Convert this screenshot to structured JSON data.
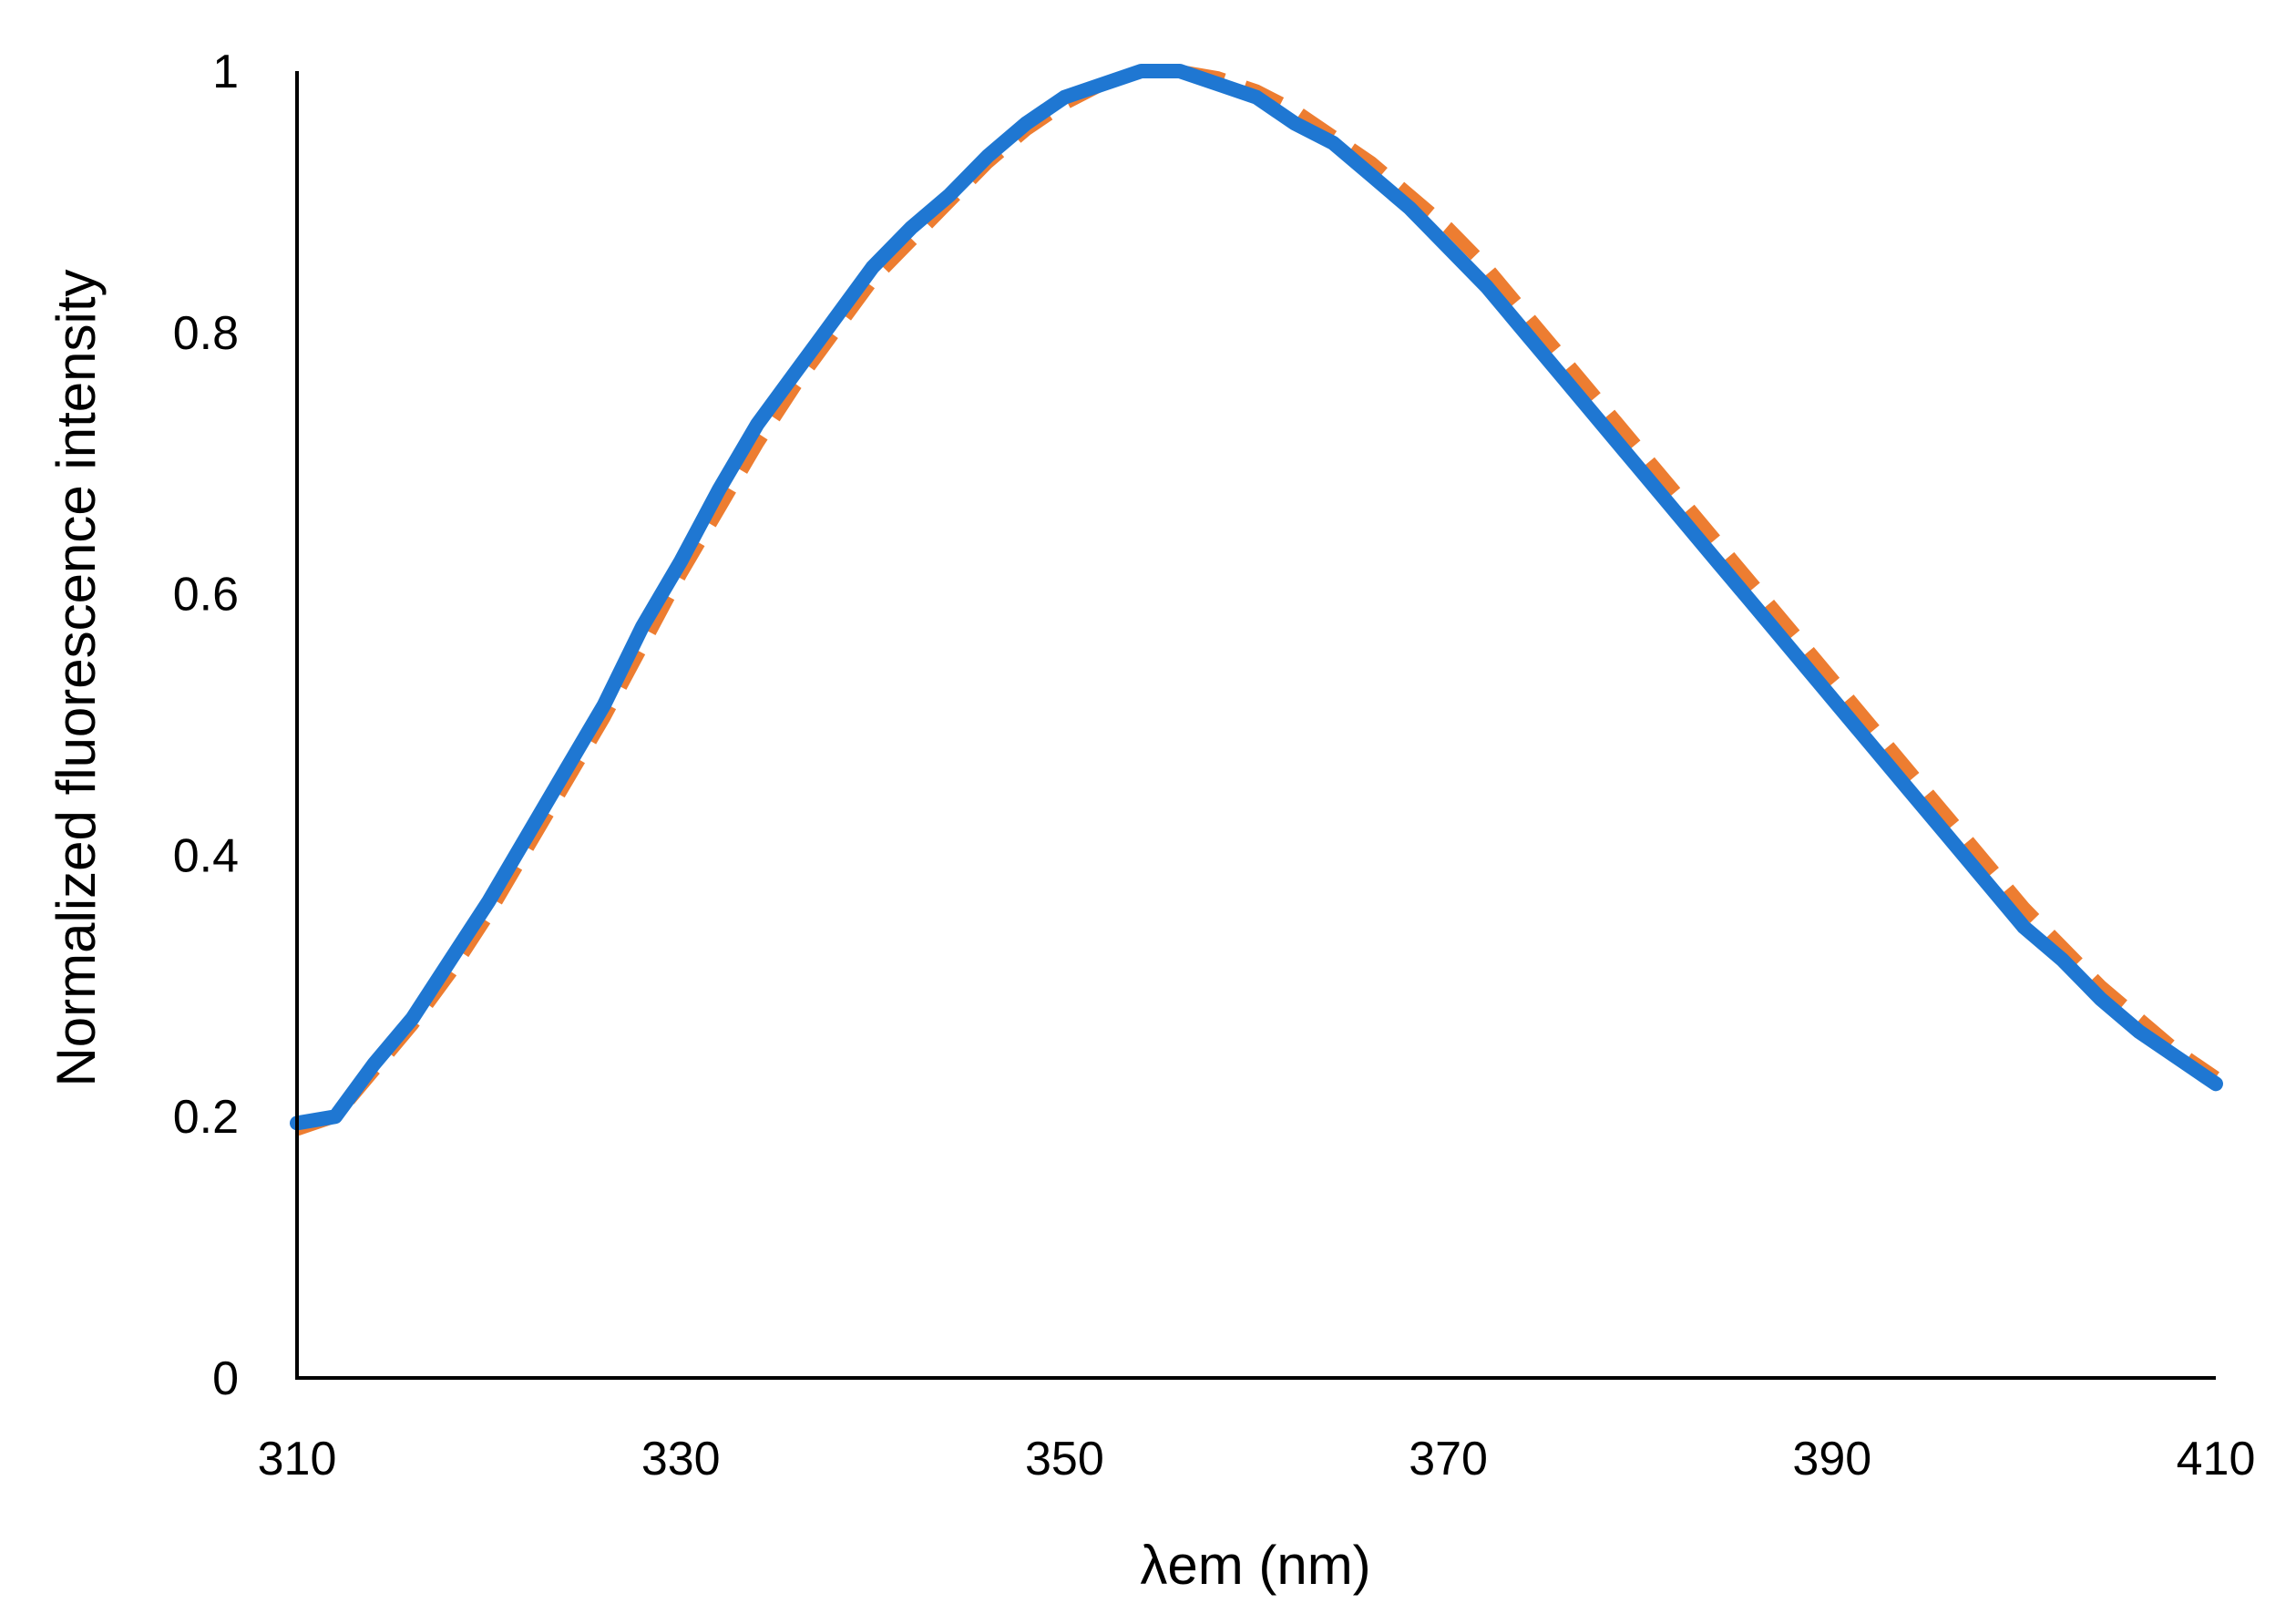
{
  "chart_data": {
    "type": "line",
    "xlabel": "λem (nm)",
    "ylabel": "Normalized fluorescence intensity",
    "xlim": [
      310,
      410
    ],
    "ylim": [
      0,
      1
    ],
    "x_ticks": [
      "310",
      "330",
      "350",
      "370",
      "390",
      "410"
    ],
    "y_ticks": [
      "0",
      "0.2",
      "0.4",
      "0.6",
      "0.8",
      "1"
    ],
    "grid": false,
    "legend": "none",
    "series": [
      {
        "color": "#ED7D31",
        "style": "dashed",
        "x": [
          310,
          312,
          314,
          316,
          318,
          320,
          322,
          324,
          326,
          328,
          330,
          332,
          334,
          336,
          338,
          340,
          342,
          344,
          346,
          348,
          350,
          352,
          354,
          356,
          358,
          360,
          362,
          364,
          366,
          368,
          370,
          372,
          374,
          376,
          378,
          380,
          382,
          384,
          386,
          388,
          390,
          392,
          394,
          396,
          398,
          400,
          402,
          404,
          406,
          408,
          410
        ],
        "y": [
          0.19,
          0.2,
          0.235,
          0.27,
          0.31,
          0.355,
          0.405,
          0.455,
          0.505,
          0.56,
          0.615,
          0.665,
          0.715,
          0.76,
          0.8,
          0.84,
          0.87,
          0.9,
          0.93,
          0.955,
          0.975,
          0.99,
          1.0,
          1.0,
          0.995,
          0.985,
          0.97,
          0.95,
          0.93,
          0.905,
          0.88,
          0.85,
          0.815,
          0.78,
          0.745,
          0.71,
          0.675,
          0.64,
          0.605,
          0.57,
          0.535,
          0.5,
          0.465,
          0.43,
          0.395,
          0.36,
          0.33,
          0.3,
          0.275,
          0.25,
          0.23
        ]
      },
      {
        "color": "#1F77D2",
        "style": "solid",
        "x": [
          310,
          312,
          314,
          316,
          318,
          320,
          322,
          324,
          326,
          328,
          330,
          332,
          334,
          336,
          338,
          340,
          342,
          344,
          346,
          348,
          350,
          352,
          354,
          356,
          358,
          360,
          362,
          364,
          366,
          368,
          370,
          372,
          374,
          376,
          378,
          380,
          382,
          384,
          386,
          388,
          390,
          392,
          394,
          396,
          398,
          400,
          402,
          404,
          406,
          408,
          410
        ],
        "y": [
          0.195,
          0.2,
          0.24,
          0.275,
          0.32,
          0.365,
          0.415,
          0.465,
          0.515,
          0.575,
          0.625,
          0.68,
          0.73,
          0.77,
          0.81,
          0.85,
          0.88,
          0.905,
          0.935,
          0.96,
          0.98,
          0.99,
          1.0,
          1.0,
          0.99,
          0.98,
          0.96,
          0.945,
          0.92,
          0.895,
          0.865,
          0.835,
          0.8,
          0.765,
          0.73,
          0.695,
          0.66,
          0.625,
          0.59,
          0.555,
          0.52,
          0.485,
          0.45,
          0.415,
          0.38,
          0.345,
          0.32,
          0.29,
          0.265,
          0.245,
          0.225
        ]
      }
    ]
  }
}
